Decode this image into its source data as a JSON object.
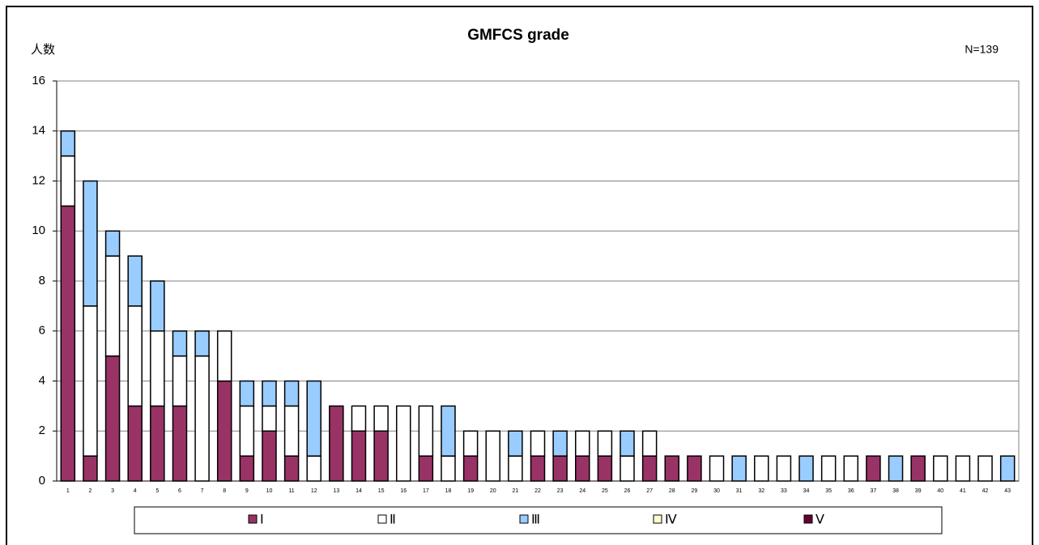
{
  "chart_data": {
    "type": "stacked_bar",
    "title": "GMFCS grade",
    "y_label": "人数",
    "annotation": "N=139",
    "categories": [
      "1",
      "2",
      "3",
      "4",
      "5",
      "6",
      "7",
      "8",
      "9",
      "10",
      "11",
      "12",
      "13",
      "14",
      "15",
      "16",
      "17",
      "18",
      "19",
      "20",
      "21",
      "22",
      "23",
      "24",
      "25",
      "26",
      "27",
      "28",
      "29",
      "30",
      "31",
      "32",
      "33",
      "34",
      "35",
      "36",
      "37",
      "38",
      "39",
      "40",
      "41",
      "42",
      "43"
    ],
    "series": [
      {
        "name": "Ⅰ",
        "color": "#993366",
        "values": [
          11,
          1,
          5,
          3,
          3,
          3,
          0,
          4,
          1,
          2,
          1,
          0,
          3,
          2,
          2,
          0,
          1,
          0,
          1,
          0,
          0,
          1,
          1,
          1,
          1,
          0,
          1,
          1,
          1,
          0,
          0,
          0,
          0,
          0,
          0,
          0,
          1,
          0,
          1,
          0,
          0,
          0,
          0
        ]
      },
      {
        "name": "Ⅱ",
        "color": "#ffffff",
        "values": [
          2,
          6,
          4,
          4,
          3,
          2,
          5,
          2,
          2,
          1,
          2,
          1,
          0,
          1,
          1,
          3,
          2,
          1,
          1,
          2,
          1,
          1,
          0,
          1,
          1,
          1,
          1,
          0,
          0,
          1,
          0,
          1,
          1,
          0,
          1,
          1,
          0,
          0,
          0,
          1,
          1,
          1,
          0
        ]
      },
      {
        "name": "Ⅲ",
        "color": "#99ccff",
        "values": [
          1,
          5,
          1,
          2,
          2,
          1,
          1,
          0,
          1,
          1,
          1,
          3,
          0,
          0,
          0,
          0,
          0,
          2,
          0,
          0,
          1,
          0,
          1,
          0,
          0,
          1,
          0,
          0,
          0,
          0,
          1,
          0,
          0,
          1,
          0,
          0,
          0,
          1,
          0,
          0,
          0,
          0,
          1
        ]
      },
      {
        "name": "Ⅳ",
        "color": "#ffffcc",
        "values": [
          0,
          0,
          0,
          0,
          0,
          0,
          0,
          0,
          0,
          0,
          0,
          0,
          0,
          0,
          0,
          0,
          0,
          0,
          0,
          0,
          0,
          0,
          0,
          0,
          0,
          0,
          0,
          0,
          0,
          0,
          0,
          0,
          0,
          0,
          0,
          0,
          0,
          0,
          0,
          0,
          0,
          0,
          0
        ]
      },
      {
        "name": "Ⅴ",
        "color": "#660033",
        "values": [
          0,
          0,
          0,
          0,
          0,
          0,
          0,
          0,
          0,
          0,
          0,
          0,
          0,
          0,
          0,
          0,
          0,
          0,
          0,
          0,
          0,
          0,
          0,
          0,
          0,
          0,
          0,
          0,
          0,
          0,
          0,
          0,
          0,
          0,
          0,
          0,
          0,
          0,
          0,
          0,
          0,
          0,
          0
        ]
      }
    ],
    "ylim": [
      0,
      16
    ],
    "yticks": [
      0,
      2,
      4,
      6,
      8,
      10,
      12,
      14,
      16
    ],
    "grid": true,
    "legend": "bottom"
  }
}
